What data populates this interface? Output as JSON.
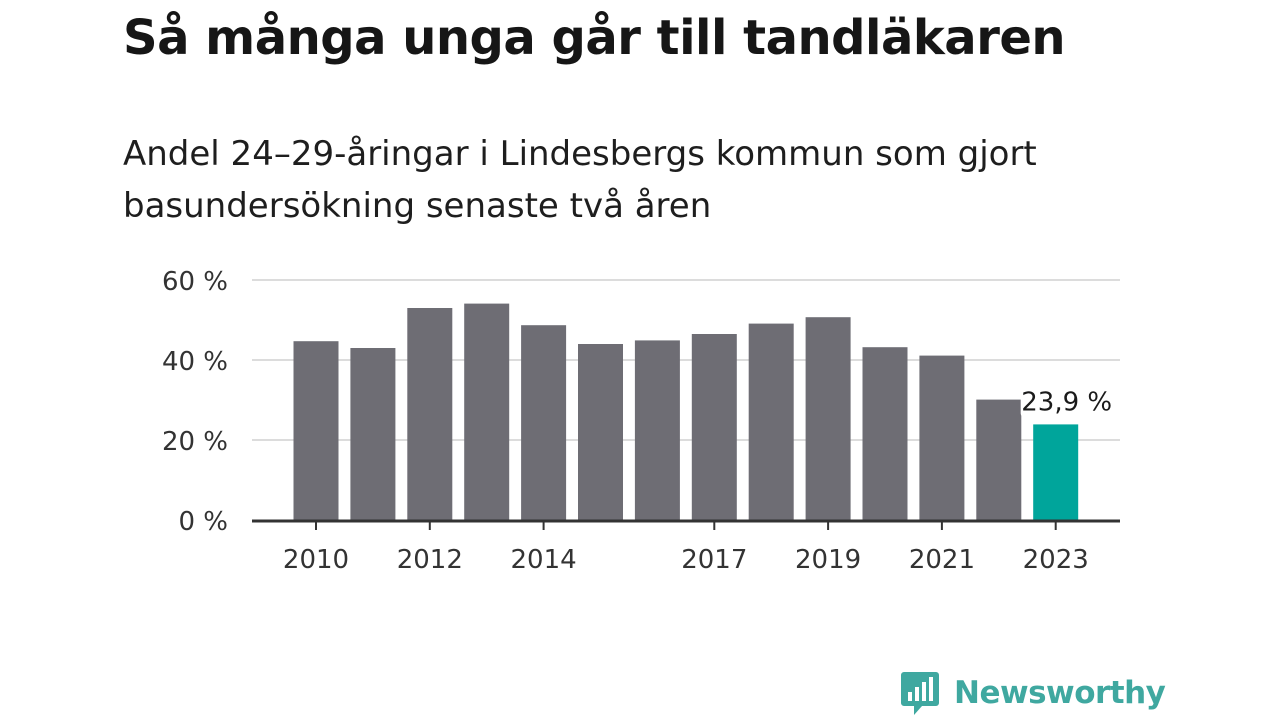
{
  "title": "Så många unga går till tandläkaren",
  "subtitle": "Andel 24–29-åringar i Lindesbergs kommun som gjort basundersökning senaste två åren",
  "brand": {
    "name": "Newsworthy",
    "color": "#3fa8a0",
    "icon": "bar-chart-speech-bubble-icon"
  },
  "colors": {
    "bar": "#6e6d74",
    "highlight": "#00a59b",
    "grid": "#dcdcdc",
    "axis": "#333333"
  },
  "chart_data": {
    "type": "bar",
    "title": "Så många unga går till tandläkaren",
    "subtitle": "Andel 24–29-åringar i Lindesbergs kommun som gjort basundersökning senaste två åren",
    "xlabel": "",
    "ylabel": "",
    "unit": "%",
    "categories": [
      "2010",
      "2011",
      "2012",
      "2013",
      "2014",
      "2015",
      "2016",
      "2017",
      "2018",
      "2019",
      "2020",
      "2021",
      "2022",
      "2023"
    ],
    "values": [
      44.7,
      43.0,
      53.0,
      54.1,
      48.7,
      44.0,
      44.9,
      46.5,
      49.1,
      50.7,
      43.2,
      41.1,
      30.1,
      23.9
    ],
    "x_tick_labels": [
      "2010",
      "",
      "2012",
      "",
      "2014",
      "",
      "",
      "2017",
      "",
      "2019",
      "",
      "2021",
      "",
      "2023"
    ],
    "y_ticks": [
      0,
      20,
      40,
      60
    ],
    "y_tick_labels": [
      "0 %",
      "20 %",
      "40 %",
      "60 %"
    ],
    "ylim": [
      0,
      60
    ],
    "grid": true,
    "legend": "none",
    "highlight_index": 13,
    "annotations": [
      {
        "index": 13,
        "text": "23,9 %"
      }
    ]
  }
}
